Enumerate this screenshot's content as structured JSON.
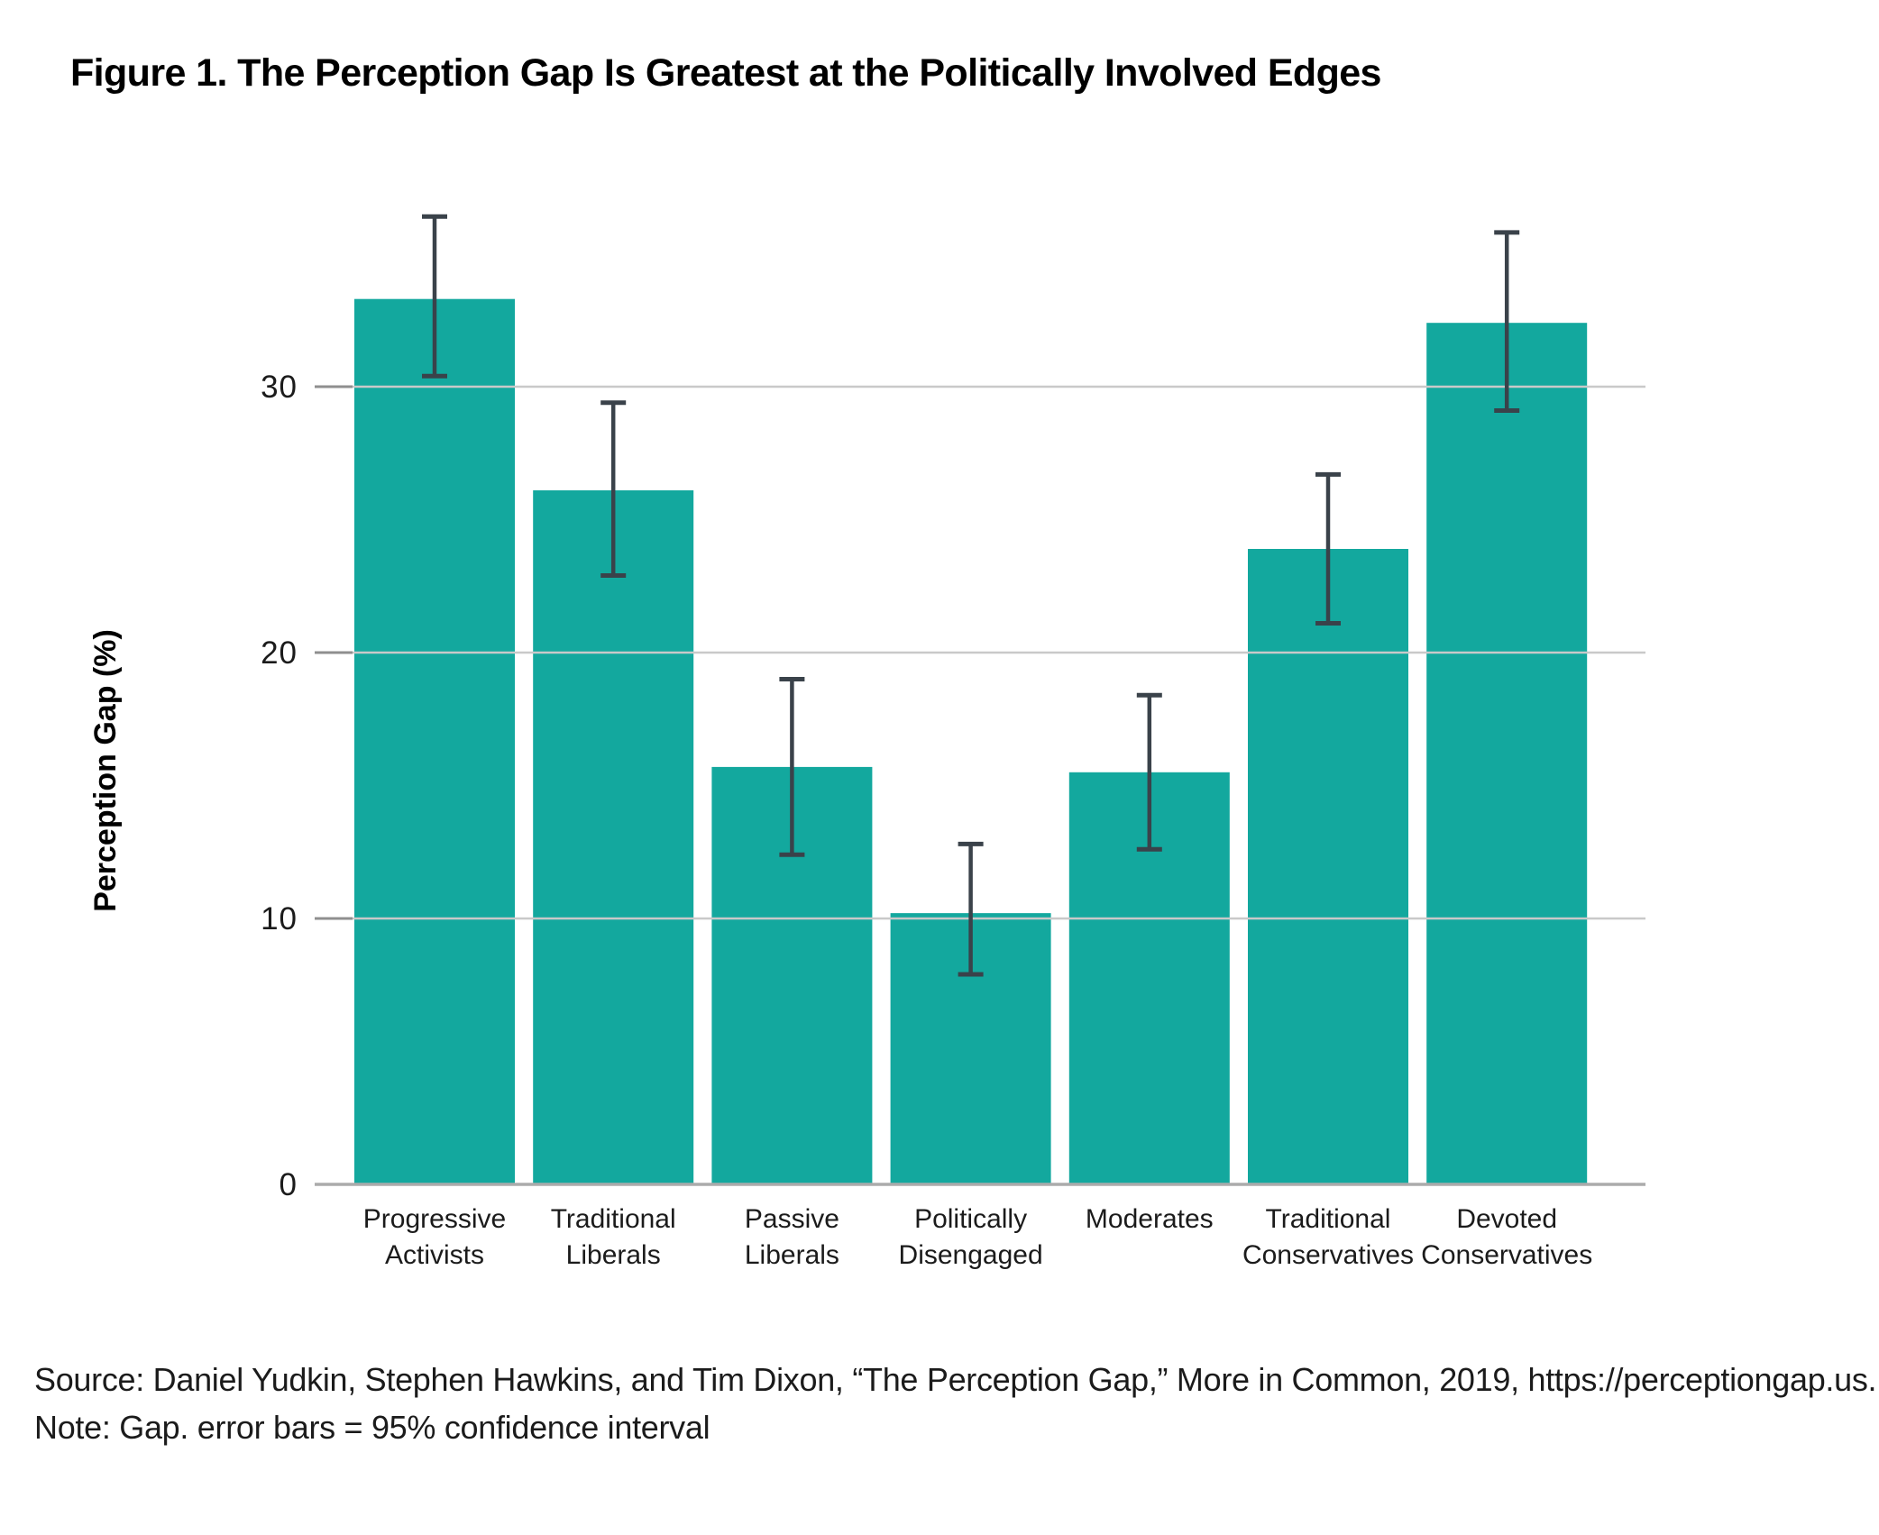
{
  "figure": {
    "title": "Figure 1. The Perception Gap Is Greatest at the Politically Involved Edges"
  },
  "footer": {
    "source": "Source: Daniel Yudkin, Stephen Hawkins, and Tim Dixon, “The Perception Gap,” More in Common, 2019, https://perceptiongap.us.",
    "note": "Note: Gap. error bars = 95% confidence interval"
  },
  "chart_data": {
    "type": "bar",
    "title": "Figure 1. The Perception Gap Is Greatest at the Politically Involved Edges",
    "xlabel": "",
    "ylabel": "Perception Gap (%)",
    "categories": [
      "Progressive Activists",
      "Traditional Liberals",
      "Passive Liberals",
      "Politically Disengaged",
      "Moderates",
      "Traditional Conservatives",
      "Devoted Conservatives"
    ],
    "category_label_lines": [
      [
        "Progressive",
        "Activists"
      ],
      [
        "Traditional",
        "Liberals"
      ],
      [
        "Passive",
        "Liberals"
      ],
      [
        "Politically",
        "Disengaged"
      ],
      [
        "Moderates"
      ],
      [
        "Traditional",
        "Conservatives"
      ],
      [
        "Devoted",
        "Conservatives"
      ]
    ],
    "values": [
      33.3,
      26.1,
      15.7,
      10.2,
      15.5,
      23.9,
      32.4
    ],
    "ci_low": [
      30.4,
      22.9,
      12.4,
      7.9,
      12.6,
      21.1,
      29.1
    ],
    "ci_high": [
      36.4,
      29.4,
      19.0,
      12.8,
      18.4,
      26.7,
      35.8
    ],
    "error_bar_meaning": "95% confidence interval",
    "yticks": [
      0,
      10,
      20,
      30
    ],
    "ylim": [
      0,
      37
    ],
    "grid": "horizontal",
    "legend": "none",
    "colors": {
      "bar": "#13a89e",
      "error_bar": "#3a424a",
      "gridline": "#c9c9c9",
      "tick_mark": "#8f8f8f",
      "baseline": "#ababab",
      "text": "#1b1b1b"
    }
  }
}
